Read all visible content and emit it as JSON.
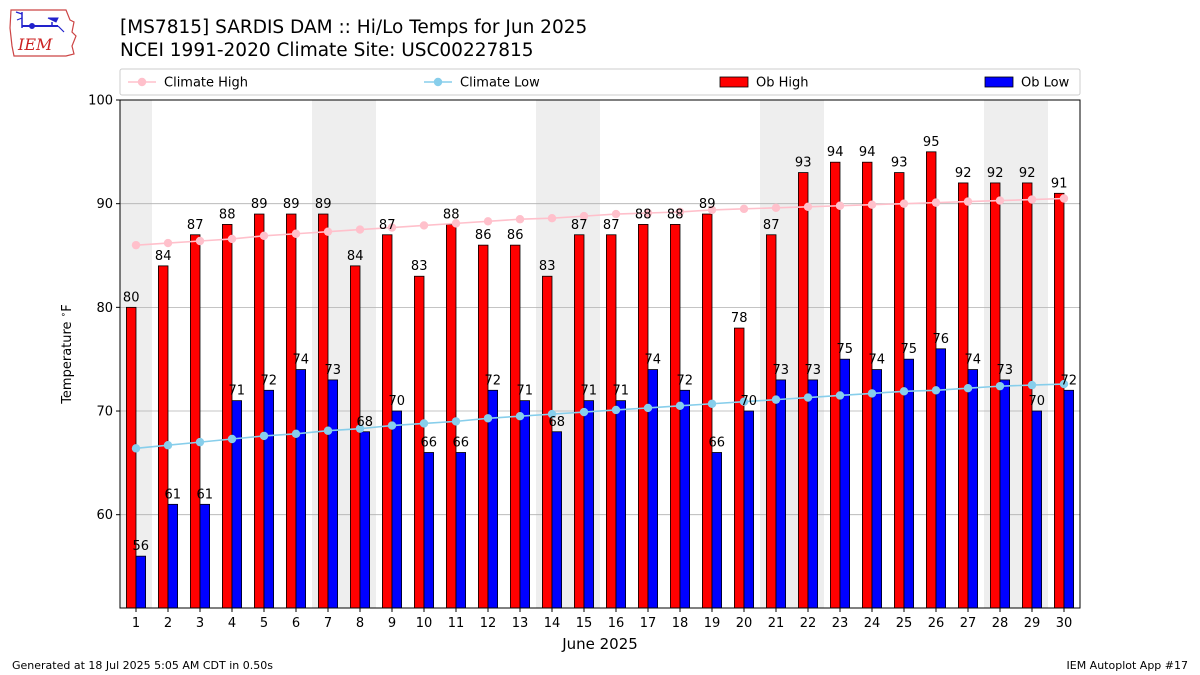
{
  "logo": {
    "text": "IEM",
    "color": "#cc2222"
  },
  "header": {
    "title_line1": "[MS7815] SARDIS DAM :: Hi/Lo Temps for Jun 2025",
    "title_line2": "NCEI 1991-2020 Climate Site: USC00227815"
  },
  "footer": {
    "generated": "Generated at 18 Jul 2025 5:05 AM CDT in 0.50s",
    "app": "IEM Autoplot App #17"
  },
  "chart_data": {
    "type": "bar",
    "xlabel": "June 2025",
    "ylabel": "Temperature $^\\circ$F",
    "ylim": [
      51,
      100
    ],
    "yticks": [
      60,
      70,
      80,
      90,
      100
    ],
    "grid": true,
    "legend_placement": "top",
    "categories": [
      "1",
      "2",
      "3",
      "4",
      "5",
      "6",
      "7",
      "8",
      "9",
      "10",
      "11",
      "12",
      "13",
      "14",
      "15",
      "16",
      "17",
      "18",
      "19",
      "20",
      "21",
      "22",
      "23",
      "24",
      "25",
      "26",
      "27",
      "28",
      "29",
      "30"
    ],
    "weekend_shading": [
      [
        1,
        1
      ],
      [
        7,
        8
      ],
      [
        14,
        15
      ],
      [
        21,
        22
      ],
      [
        28,
        29
      ]
    ],
    "series": [
      {
        "name": "Ob High",
        "kind": "bar",
        "color": "#ff0000",
        "values": [
          80,
          84,
          87,
          88,
          89,
          89,
          89,
          84,
          87,
          83,
          88,
          86,
          86,
          83,
          87,
          87,
          88,
          88,
          89,
          78,
          87,
          93,
          94,
          94,
          93,
          95,
          92,
          92,
          92,
          91
        ]
      },
      {
        "name": "Ob Low",
        "kind": "bar",
        "color": "#0000ff",
        "values": [
          56,
          61,
          61,
          71,
          72,
          74,
          73,
          68,
          70,
          66,
          66,
          72,
          71,
          68,
          71,
          71,
          74,
          72,
          66,
          70,
          73,
          73,
          75,
          74,
          75,
          76,
          74,
          73,
          70,
          72
        ]
      },
      {
        "name": "Climate High",
        "kind": "line",
        "color": "#ffc0cb",
        "values": [
          86.0,
          86.2,
          86.4,
          86.6,
          86.9,
          87.1,
          87.3,
          87.5,
          87.7,
          87.9,
          88.1,
          88.3,
          88.5,
          88.6,
          88.8,
          89.0,
          89.1,
          89.2,
          89.4,
          89.5,
          89.6,
          89.7,
          89.8,
          89.9,
          90.0,
          90.1,
          90.2,
          90.3,
          90.4,
          90.5
        ]
      },
      {
        "name": "Climate Low",
        "kind": "line",
        "color": "#87ceeb",
        "values": [
          66.4,
          66.7,
          67.0,
          67.3,
          67.6,
          67.8,
          68.1,
          68.3,
          68.6,
          68.8,
          69.0,
          69.3,
          69.5,
          69.7,
          69.9,
          70.1,
          70.3,
          70.5,
          70.7,
          70.9,
          71.1,
          71.3,
          71.5,
          71.7,
          71.9,
          72.0,
          72.2,
          72.4,
          72.5,
          72.6
        ]
      }
    ]
  }
}
